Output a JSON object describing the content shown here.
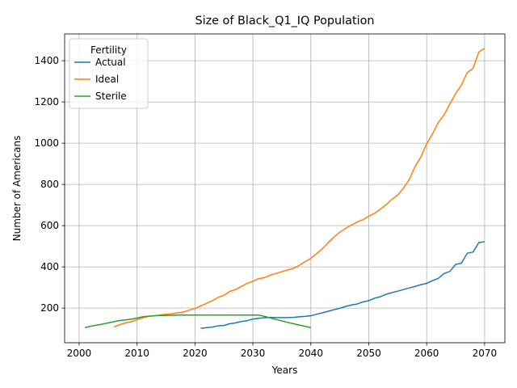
{
  "chart_data": {
    "type": "line",
    "title": "Size of Black_Q1_IQ Population",
    "xlabel": "Years",
    "ylabel": "Number of Americans",
    "xlim": [
      1997.5,
      2073.5
    ],
    "ylim": [
      32,
      1530
    ],
    "xticks": [
      2000,
      2010,
      2020,
      2030,
      2040,
      2050,
      2060,
      2070
    ],
    "yticks": [
      200,
      400,
      600,
      800,
      1000,
      1200,
      1400
    ],
    "grid": true,
    "legend": {
      "title": "Fertility",
      "position": "upper-left"
    },
    "series": [
      {
        "name": "Actual",
        "color": "#1f77b4",
        "x": [
          2021,
          2022,
          2023,
          2024,
          2025,
          2026,
          2027,
          2028,
          2029,
          2030,
          2031,
          2032,
          2033,
          2034,
          2035,
          2036,
          2037,
          2038,
          2039,
          2040,
          2041,
          2042,
          2043,
          2044,
          2045,
          2046,
          2047,
          2048,
          2049,
          2050,
          2051,
          2052,
          2053,
          2054,
          2055,
          2056,
          2057,
          2058,
          2059,
          2060,
          2061,
          2062,
          2063,
          2064,
          2065,
          2066,
          2067,
          2068,
          2069,
          2070
        ],
        "y": [
          102,
          105,
          108,
          114,
          116,
          124,
          128,
          135,
          139,
          147,
          151,
          153,
          155,
          154,
          154,
          154,
          155,
          158,
          160,
          163,
          170,
          177,
          185,
          192,
          199,
          208,
          215,
          220,
          230,
          236,
          248,
          255,
          267,
          275,
          282,
          290,
          298,
          305,
          314,
          320,
          333,
          344,
          368,
          378,
          412,
          418,
          466,
          472,
          518,
          522
        ]
      },
      {
        "name": "Ideal",
        "color": "#ff7f0e",
        "x": [
          2006,
          2007,
          2008,
          2009,
          2010,
          2011,
          2012,
          2013,
          2014,
          2015,
          2016,
          2017,
          2018,
          2019,
          2020,
          2021,
          2022,
          2023,
          2024,
          2025,
          2026,
          2027,
          2028,
          2029,
          2030,
          2031,
          2032,
          2033,
          2034,
          2035,
          2036,
          2037,
          2038,
          2039,
          2040,
          2041,
          2042,
          2043,
          2044,
          2045,
          2046,
          2047,
          2048,
          2049,
          2050,
          2051,
          2052,
          2053,
          2054,
          2055,
          2056,
          2057,
          2058,
          2059,
          2060,
          2061,
          2062,
          2063,
          2064,
          2065,
          2066,
          2067,
          2068,
          2069,
          2070
        ],
        "y": [
          108,
          120,
          128,
          134,
          144,
          153,
          160,
          163,
          166,
          170,
          172,
          177,
          181,
          190,
          198,
          211,
          223,
          236,
          252,
          262,
          281,
          290,
          305,
          320,
          330,
          343,
          348,
          360,
          368,
          377,
          385,
          393,
          407,
          425,
          441,
          464,
          488,
          518,
          545,
          568,
          587,
          603,
          618,
          629,
          646,
          660,
          680,
          701,
          728,
          748,
          782,
          825,
          887,
          933,
          998,
          1045,
          1100,
          1138,
          1190,
          1241,
          1282,
          1342,
          1363,
          1442,
          1460
        ]
      },
      {
        "name": "Sterile",
        "color": "#2ca02c",
        "x": [
          2001,
          2002,
          2003,
          2004,
          2005,
          2006,
          2007,
          2008,
          2009,
          2010,
          2011,
          2012,
          2013,
          2014,
          2015,
          2016,
          2017,
          2018,
          2019,
          2020,
          2021,
          2022,
          2023,
          2024,
          2025,
          2026,
          2027,
          2028,
          2029,
          2030,
          2031,
          2032,
          2033,
          2034,
          2035,
          2036,
          2037,
          2038,
          2039,
          2040
        ],
        "y": [
          105,
          112,
          117,
          122,
          128,
          134,
          140,
          143,
          146,
          152,
          158,
          161,
          163,
          164,
          165,
          165,
          166,
          166,
          166,
          166,
          166,
          166,
          166,
          166,
          166,
          166,
          166,
          166,
          166,
          166,
          166,
          160,
          152,
          145,
          138,
          131,
          124,
          118,
          112,
          105
        ]
      }
    ]
  }
}
